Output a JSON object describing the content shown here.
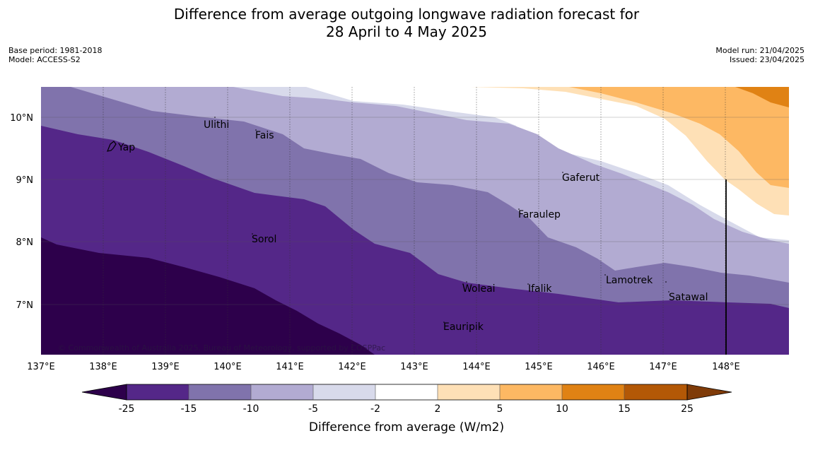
{
  "title_line1": "Difference from average outgoing longwave radiation forecast for",
  "title_line2": "28 April to 4 May 2025",
  "meta_left": {
    "base_period": "Base period: 1981-2018",
    "model": "Model: ACCESS-S2"
  },
  "meta_right": {
    "model_run": "Model run: 21/04/2025",
    "issued": "Issued: 23/04/2025"
  },
  "map": {
    "lon_labels": [
      "137°E",
      "138°E",
      "139°E",
      "140°E",
      "141°E",
      "142°E",
      "143°E",
      "144°E",
      "145°E",
      "146°E",
      "147°E",
      "148°E"
    ],
    "lat_labels": [
      "10°N",
      "9°N",
      "8°N",
      "7°N"
    ],
    "places": [
      "Ulithi",
      "Yap",
      "Fais",
      "Gaferut",
      "Faraulep",
      "Sorol",
      "Lamotrek",
      "Woleai",
      "Ifalik",
      "Satawal",
      "Eauripik"
    ],
    "copyright": "© Commonwealth of Australia 2025, Bureau of Meteorology, supported by COSPPac"
  },
  "colorbar": {
    "title": "Difference from average (W/m2)",
    "ticks": [
      "-25",
      "-15",
      "-10",
      "-5",
      "-2",
      "2",
      "5",
      "10",
      "15",
      "25"
    ],
    "colors": {
      "below_-25": "#2d004b",
      "-25_to_-15": "#542788",
      "-15_to_-10": "#8073ac",
      "-10_to_-5": "#b2abd2",
      "-5_to_-2": "#d8daeb",
      "-2_to_2": "#ffffff",
      "2_to_5": "#fee0b6",
      "5_to_10": "#fdb863",
      "10_to_15": "#e08214",
      "15_to_25": "#b35806",
      "above_25": "#7f3b08"
    }
  }
}
